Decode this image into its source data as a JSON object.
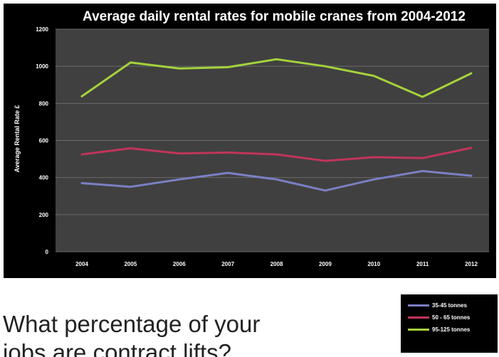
{
  "colors": {
    "panel_bg": "#000000",
    "plot_bg": "#404040",
    "gridline": "#6a6a6a",
    "text": "#ffffff"
  },
  "chart_data": {
    "type": "line",
    "title": "Average daily rental rates for mobile cranes from 2004-2012",
    "ylabel": "Average Rental Rate £",
    "xlabel": "",
    "categories": [
      "2004",
      "2005",
      "2006",
      "2007",
      "2008",
      "2009",
      "2010",
      "2011",
      "2012"
    ],
    "ylim": [
      0,
      1200
    ],
    "yticks": [
      "0",
      "200",
      "400",
      "600",
      "800",
      "1000",
      "1200"
    ],
    "grid": true,
    "legend_position": "below-right",
    "series": [
      {
        "name": "35-45 tonnes",
        "color": "#7b7fc4",
        "values": [
          370,
          350,
          390,
          425,
          390,
          330,
          390,
          435,
          410
        ]
      },
      {
        "name": "50 - 65 tonnes",
        "color": "#c0355a",
        "values": [
          525,
          558,
          530,
          535,
          525,
          490,
          510,
          505,
          560
        ]
      },
      {
        "name": "95-125 tonnes",
        "color": "#a4d23c",
        "values": [
          838,
          1020,
          988,
          995,
          1038,
          1000,
          948,
          835,
          962
        ]
      }
    ]
  },
  "question": {
    "line1": "What percentage of your",
    "line2": "jobs are contract lifts?"
  }
}
